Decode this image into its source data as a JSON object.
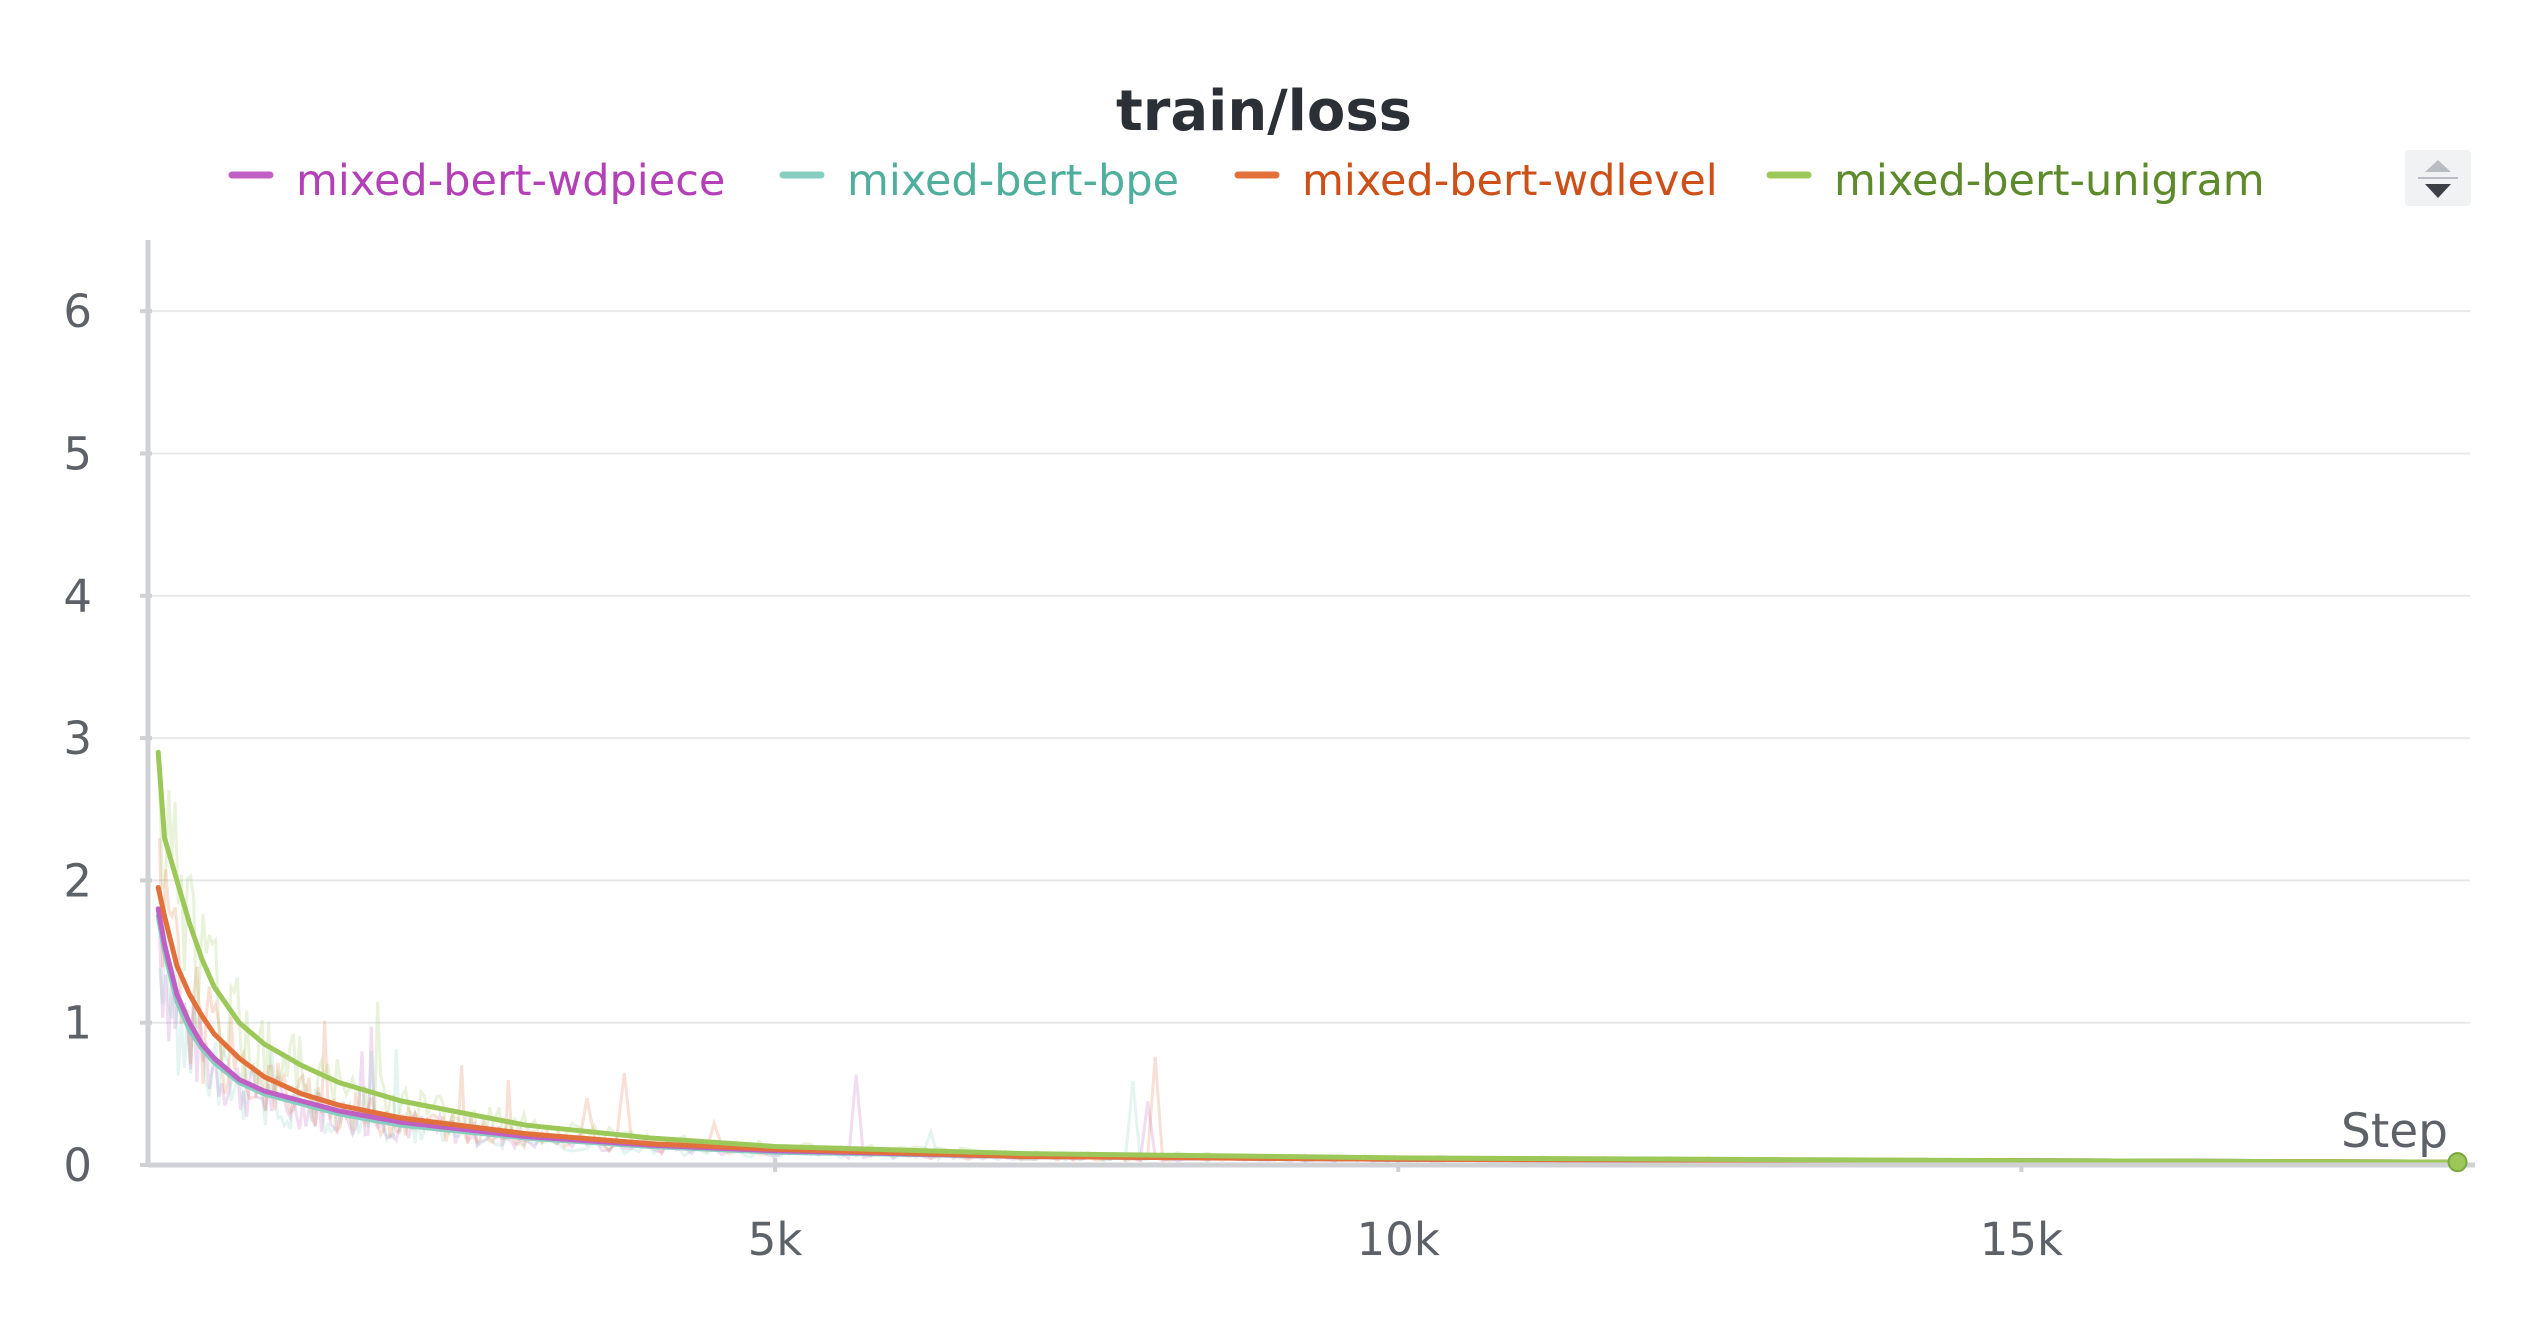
{
  "chart_data": {
    "type": "line",
    "title": "train/loss",
    "xlabel": "Step",
    "ylabel": "",
    "xlim": [
      0,
      18600
    ],
    "ylim": [
      0,
      6.5
    ],
    "xticks": [
      5000,
      10000,
      15000
    ],
    "xtick_labels": [
      "5k",
      "10k",
      "15k"
    ],
    "yticks": [
      0,
      1,
      2,
      3,
      4,
      5,
      6
    ],
    "ytick_labels": [
      "0",
      "1",
      "2",
      "3",
      "4",
      "5",
      "6"
    ],
    "grid": true,
    "legend_position": "top",
    "series": [
      {
        "name": "mixed-bert-wdpiece",
        "color": "#c060c4",
        "text_color": "#b440b8",
        "x": [
          50,
          100,
          200,
          300,
          400,
          500,
          700,
          900,
          1200,
          1500,
          2000,
          3000,
          4000,
          5000,
          7000,
          10000,
          15000,
          18500
        ],
        "y": [
          1.8,
          1.55,
          1.2,
          1.0,
          0.85,
          0.75,
          0.6,
          0.52,
          0.45,
          0.38,
          0.3,
          0.2,
          0.14,
          0.1,
          0.06,
          0.04,
          0.03,
          0.02
        ]
      },
      {
        "name": "mixed-bert-bpe",
        "color": "#86cfc0",
        "text_color": "#4fae9c",
        "x": [
          50,
          100,
          200,
          300,
          400,
          500,
          700,
          900,
          1200,
          1500,
          2000,
          3000,
          4000,
          5000,
          7000,
          10000,
          15000,
          18500
        ],
        "y": [
          1.75,
          1.5,
          1.15,
          0.95,
          0.82,
          0.72,
          0.58,
          0.5,
          0.43,
          0.36,
          0.28,
          0.19,
          0.13,
          0.09,
          0.06,
          0.04,
          0.03,
          0.02
        ]
      },
      {
        "name": "mixed-bert-wdlevel",
        "color": "#e2703a",
        "text_color": "#cc5018",
        "x": [
          50,
          100,
          200,
          300,
          400,
          500,
          700,
          900,
          1200,
          1500,
          2000,
          3000,
          4000,
          5000,
          7000,
          10000,
          15000,
          18500
        ],
        "y": [
          1.95,
          1.75,
          1.4,
          1.2,
          1.05,
          0.92,
          0.75,
          0.62,
          0.5,
          0.42,
          0.33,
          0.22,
          0.15,
          0.11,
          0.06,
          0.04,
          0.03,
          0.02
        ]
      },
      {
        "name": "mixed-bert-unigram",
        "color": "#9cc85a",
        "text_color": "#5d8a2a",
        "x": [
          50,
          100,
          200,
          300,
          400,
          500,
          700,
          900,
          1200,
          1500,
          2000,
          3000,
          4000,
          5000,
          7000,
          10000,
          15000,
          18500
        ],
        "y": [
          2.9,
          2.3,
          2.0,
          1.7,
          1.45,
          1.25,
          1.0,
          0.85,
          0.7,
          0.58,
          0.45,
          0.28,
          0.19,
          0.13,
          0.08,
          0.05,
          0.03,
          0.02
        ]
      }
    ]
  }
}
